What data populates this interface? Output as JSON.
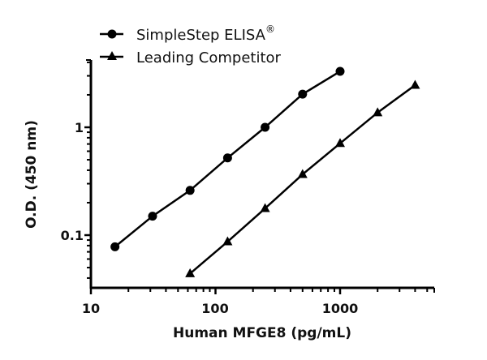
{
  "chart_data": {
    "type": "line",
    "title": "",
    "xlabel": "Human MFGE8 (pg/mL)",
    "ylabel": "O.D. (450 nm)",
    "xscale": "log",
    "yscale": "log",
    "xlim": [
      10,
      5700
    ],
    "ylim": [
      0.032,
      4.2
    ],
    "xticks": [
      "10",
      "100",
      "1000"
    ],
    "yticks": [
      "0.1",
      "1"
    ],
    "grid": false,
    "legend_position": "top-left",
    "series": [
      {
        "name": "SimpleStep ELISA®",
        "marker": "circle",
        "x": [
          15.6,
          31.25,
          62.5,
          125,
          250,
          500,
          1000
        ],
        "values": [
          0.078,
          0.15,
          0.26,
          0.52,
          1.0,
          2.03,
          3.3
        ]
      },
      {
        "name": "Leading Competitor",
        "marker": "triangle",
        "x": [
          62.5,
          125,
          250,
          500,
          1000,
          2000,
          4000
        ],
        "values": [
          0.044,
          0.087,
          0.177,
          0.366,
          0.71,
          1.37,
          2.46
        ]
      }
    ]
  },
  "legend": {
    "item1": "SimpleStep ELISA",
    "item1_sup": "®",
    "item2": "Leading Competitor"
  },
  "axes": {
    "x_title": "Human MFGE8 (pg/mL)",
    "y_title": "O.D. (450 nm)",
    "x_ticks": [
      "10",
      "100",
      "1000"
    ],
    "y_ticks": [
      "0.1",
      "1"
    ]
  }
}
